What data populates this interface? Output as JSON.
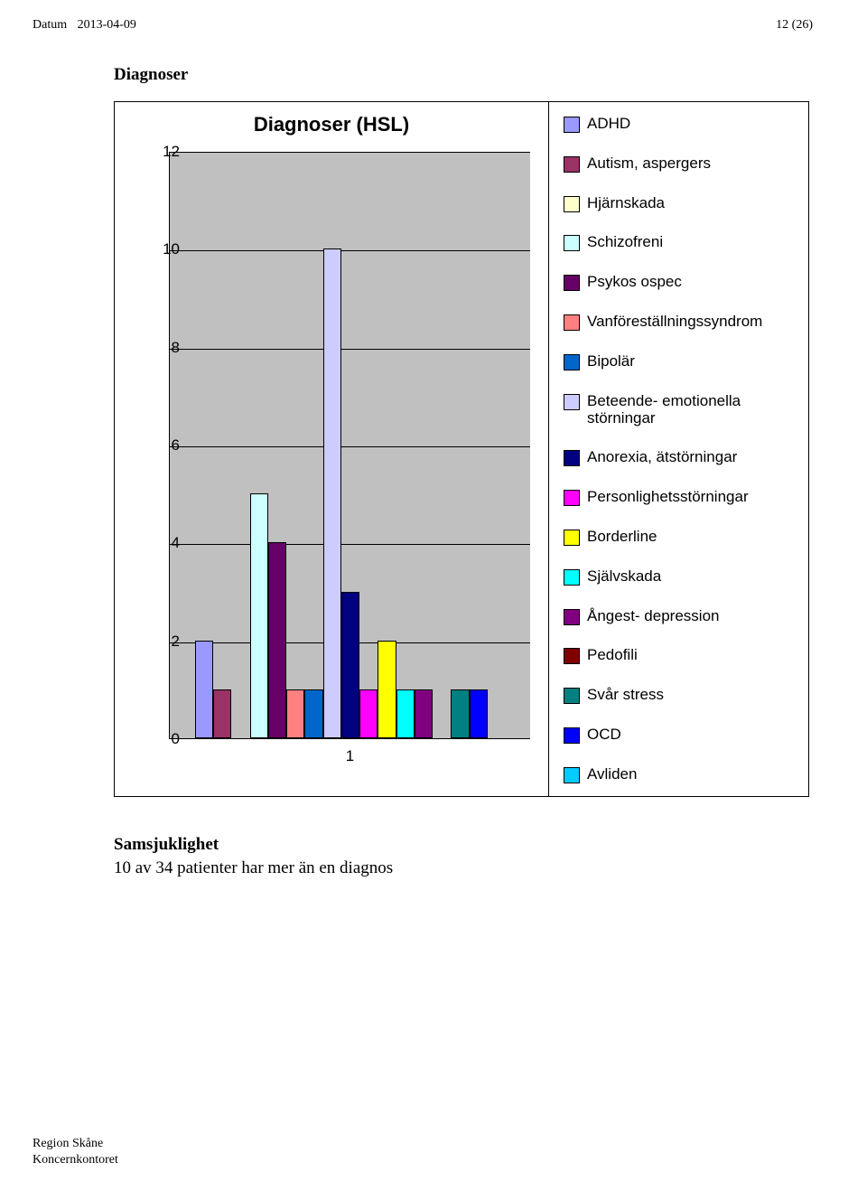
{
  "header": {
    "datum_label": "Datum",
    "datum_value": "2013-04-09",
    "page_indicator": "12 (26)"
  },
  "section_title": "Diagnoser",
  "chart": {
    "type": "bar",
    "title": "Diagnoser  (HSL)",
    "plot_bg": "#c0c0c0",
    "ymin": 0,
    "ymax": 12,
    "ytick_step": 2,
    "yticks": [
      "0",
      "2",
      "4",
      "6",
      "8",
      "10",
      "12"
    ],
    "x_category_label": "1",
    "n_bars": 17,
    "series": [
      {
        "label": "ADHD",
        "color": "#9999ff",
        "value": 2
      },
      {
        "label": "Autism, aspergers",
        "color": "#993366",
        "value": 1
      },
      {
        "label": "Hjärnskada",
        "color": "#ffffcc",
        "value": 0
      },
      {
        "label": "Schizofreni",
        "color": "#ccffff",
        "value": 5
      },
      {
        "label": "Psykos ospec",
        "color": "#660066",
        "value": 4
      },
      {
        "label": "Vanföreställningssyndrom",
        "color": "#ff8080",
        "value": 1
      },
      {
        "label": "Bipolär",
        "color": "#0066cc",
        "value": 1
      },
      {
        "label": "Beteende- emotionella störningar",
        "color": "#ccccff",
        "value": 10
      },
      {
        "label": "Anorexia, ätstörningar",
        "color": "#000080",
        "value": 3
      },
      {
        "label": "Personlighetsstörningar",
        "color": "#ff00ff",
        "value": 1
      },
      {
        "label": "Borderline",
        "color": "#ffff00",
        "value": 2
      },
      {
        "label": "Självskada",
        "color": "#00ffff",
        "value": 1
      },
      {
        "label": "Ångest- depression",
        "color": "#800080",
        "value": 1
      },
      {
        "label": "Pedofili",
        "color": "#800000",
        "value": 0
      },
      {
        "label": "Svår stress",
        "color": "#008080",
        "value": 1
      },
      {
        "label": "OCD",
        "color": "#0000ff",
        "value": 1
      },
      {
        "label": "Avliden",
        "color": "#00ccff",
        "value": 0
      }
    ]
  },
  "samsjuklighet": {
    "heading": "Samsjuklighet",
    "text": "10 av 34 patienter har mer än en diagnos"
  },
  "footer": {
    "line1": "Region Skåne",
    "line2": "Koncernkontoret"
  }
}
